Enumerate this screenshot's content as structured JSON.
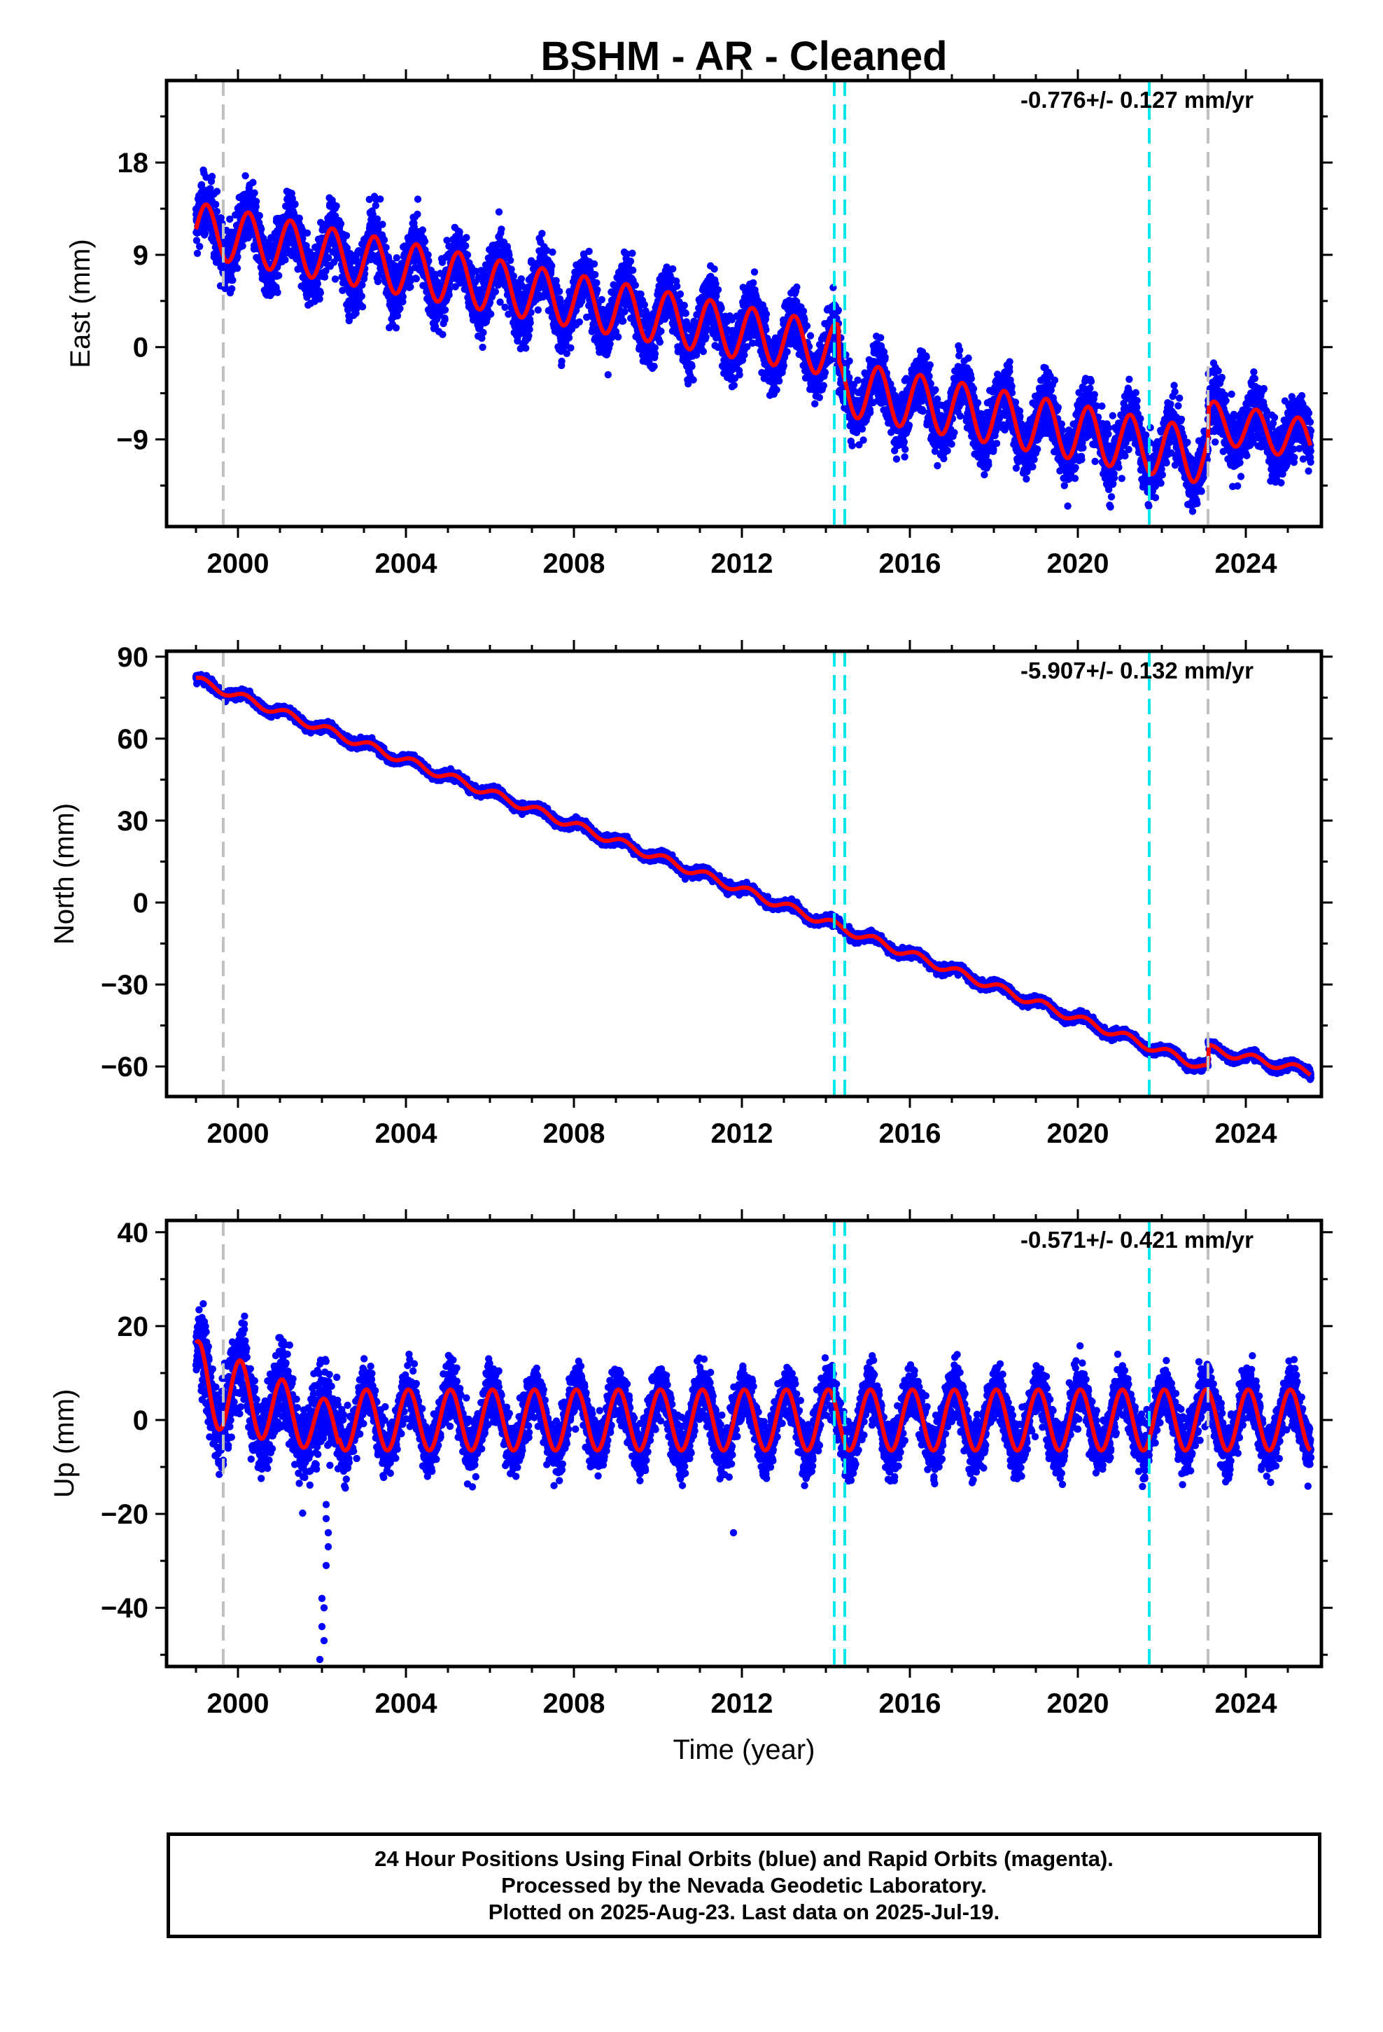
{
  "chart_data": {
    "type": "scatter",
    "title": "BSHM  - AR - Cleaned",
    "xlabel": "Time (year)",
    "xlim": [
      1998.3,
      2025.8
    ],
    "x_ticks": [
      "2000",
      "2004",
      "2008",
      "2012",
      "2016",
      "2020",
      "2024"
    ],
    "grid": false,
    "colors": {
      "points": "#0000ff",
      "model": "#ff0000",
      "vline_gray": "#c0c0c0",
      "vline_cyan": "#00e8ee"
    },
    "events": {
      "gray": [
        1999.65,
        2023.1
      ],
      "cyan": [
        2014.2,
        2014.45,
        2021.7
      ]
    },
    "panels": [
      {
        "key": "east",
        "ylabel": "East (mm)",
        "ylim": [
          -17.5,
          26
        ],
        "y_ticks": [
          18,
          9,
          0,
          -9
        ],
        "y_tick_labels": [
          "18",
          "9",
          "0",
          "−9"
        ],
        "rate_label": "-0.776+/- 0.127 mm/yr",
        "model": {
          "segments": [
            {
              "start": 1999.0,
              "end": 2014.3,
              "offset": 11.5,
              "slope": -0.776,
              "ref": 1999.0,
              "amp": 2.6,
              "amp_decay": 0.0
            },
            {
              "start": 2014.3,
              "end": 2023.1,
              "offset": -3.9,
              "slope": -0.776,
              "ref": 2014.3,
              "amp": 2.7,
              "amp_decay": 0.0
            },
            {
              "start": 2023.1,
              "end": 2025.55,
              "offset": -7.2,
              "slope": -0.776,
              "ref": 2023.1,
              "amp": 2.0,
              "amp_decay": 0.0
            }
          ],
          "phase": 0.0,
          "noise": 2.5
        }
      },
      {
        "key": "north",
        "ylabel": "North (mm)",
        "ylim": [
          -71,
          92
        ],
        "y_ticks": [
          90,
          60,
          30,
          0,
          -30,
          -60
        ],
        "y_tick_labels": [
          "90",
          "60",
          "30",
          "0",
          "−30",
          "−60"
        ],
        "rate_label": "-5.907+/- 0.132 mm/yr",
        "model": {
          "segments": [
            {
              "start": 1999.0,
              "end": 2023.1,
              "offset": 81.5,
              "slope": -5.907,
              "ref": 1999.0,
              "amp": 1.5,
              "amp_decay": 0.0
            },
            {
              "start": 2023.1,
              "end": 2025.55,
              "offset": -53.5,
              "slope": -3.5,
              "ref": 2023.1,
              "amp": 1.5,
              "amp_decay": 0.0
            }
          ],
          "phase": 0.5,
          "noise": 1.4
        }
      },
      {
        "key": "up",
        "ylabel": "Up (mm)",
        "ylim": [
          -52.5,
          42.5
        ],
        "y_ticks": [
          40,
          20,
          0,
          -20,
          -40
        ],
        "y_tick_labels": [
          "40",
          "20",
          "0",
          "−20",
          "−40"
        ],
        "rate_label": "-0.571+/- 0.421 mm/yr",
        "model": {
          "segments": [
            {
              "start": 1999.0,
              "end": 2002.4,
              "offset": 8.0,
              "slope": -3.0,
              "ref": 1999.0,
              "amp": 9.0,
              "amp_decay": 1.0
            },
            {
              "start": 2002.4,
              "end": 2025.55,
              "offset": 0.0,
              "slope": 0.0,
              "ref": 2002.4,
              "amp": 6.5,
              "amp_decay": 0.0
            }
          ],
          "phase": 1.2,
          "noise": 5.0,
          "outliers": [
            {
              "x": 2002.1,
              "y": -18
            },
            {
              "x": 2002.1,
              "y": -21
            },
            {
              "x": 2002.15,
              "y": -24
            },
            {
              "x": 2002.15,
              "y": -27
            },
            {
              "x": 2002.1,
              "y": -31
            },
            {
              "x": 2002.0,
              "y": -38
            },
            {
              "x": 2002.05,
              "y": -40
            },
            {
              "x": 2002.0,
              "y": -44
            },
            {
              "x": 2002.05,
              "y": -47
            },
            {
              "x": 2001.95,
              "y": -51
            },
            {
              "x": 2011.8,
              "y": -24
            }
          ]
        }
      }
    ]
  },
  "caption": {
    "line1": "24 Hour Positions Using Final Orbits (blue) and Rapid Orbits (magenta).",
    "line2": "Processed by the Nevada Geodetic Laboratory.",
    "line3": "Plotted on 2025-Aug-23. Last data on 2025-Jul-19."
  }
}
